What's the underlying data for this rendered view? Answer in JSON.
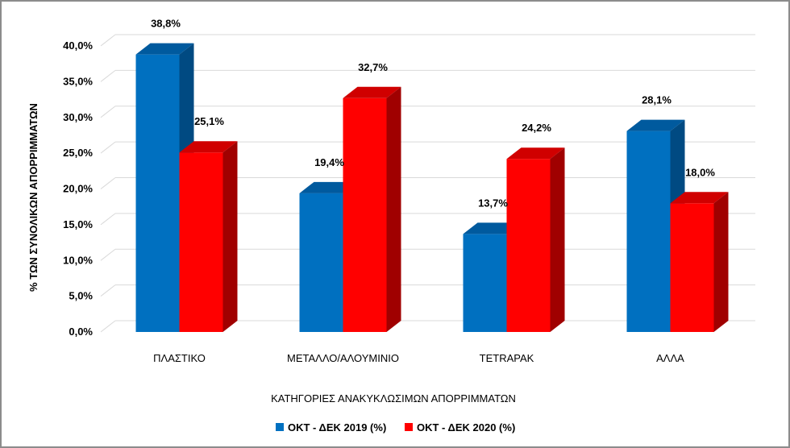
{
  "chart_data": {
    "type": "bar",
    "categories": [
      "ΠΛΑΣΤΙΚΟ",
      "ΜΕΤΑΛΛΟ/ΑΛΟΥΜΙΝΙΟ",
      "TETRAPAK",
      "ΑΛΛΑ"
    ],
    "series": [
      {
        "name": "ΟΚΤ - ΔΕΚ 2019 (%)",
        "values": [
          38.8,
          19.4,
          13.7,
          28.1
        ],
        "labels": [
          "38,8%",
          "19,4%",
          "13,7%",
          "28,1%"
        ],
        "color": "#0070C0",
        "top_color": "#005A9E",
        "side_color": "#004A82"
      },
      {
        "name": "ΟΚΤ - ΔΕΚ 2020 (%)",
        "values": [
          25.1,
          32.7,
          24.2,
          18.0
        ],
        "labels": [
          "25,1%",
          "32,7%",
          "24,2%",
          "18,0%"
        ],
        "color": "#FF0000",
        "top_color": "#D00000",
        "side_color": "#A00000"
      }
    ],
    "title": "",
    "xlabel": "ΚΑΤΗΓΟΡΙΕΣ ΑΝΑΚΥΚΛΩΣΙΜΩΝ ΑΠΟΡΡΙΜΜΑΤΩΝ",
    "ylabel": "% ΤΩΝ ΣΥΝΟΛΙΚΩΝ ΑΠΟΡΡΙΜΜΑΤΩΝ",
    "ylim": [
      0,
      40
    ],
    "yticks": [
      "0,0%",
      "5,0%",
      "10,0%",
      "15,0%",
      "20,0%",
      "25,0%",
      "30,0%",
      "35,0%",
      "40,0%"
    ],
    "grid": true,
    "legend_position": "bottom",
    "style": "3d-clustered-column"
  }
}
